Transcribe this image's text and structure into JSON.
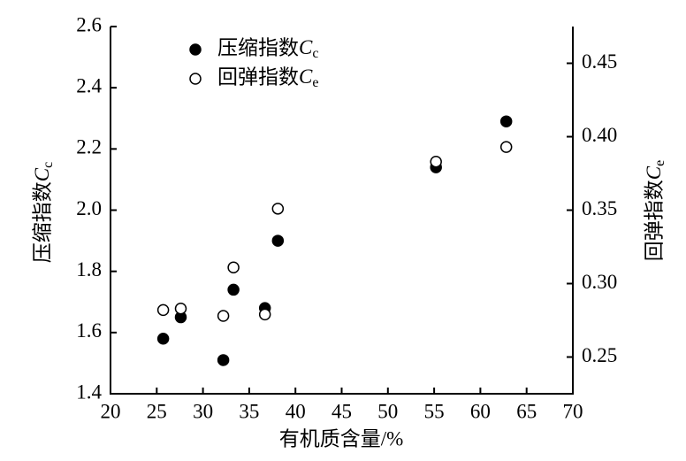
{
  "chart_data": {
    "type": "scatter",
    "xlabel": "有机质含量/%",
    "ylabel": "压缩指数Cc",
    "y2label": "回弹指数Ce",
    "xlim": [
      20,
      70
    ],
    "xticks": [
      20,
      25,
      30,
      35,
      40,
      45,
      50,
      55,
      60,
      65,
      70
    ],
    "ylim": [
      1.4,
      2.6
    ],
    "yticks": [
      1.4,
      1.6,
      1.8,
      {
        "value": 2,
        "label": "2.0"
      },
      2.2,
      2.4,
      2.6
    ],
    "y2lim": [
      0.225,
      0.475
    ],
    "y2ticks": [
      0.25,
      {
        "value": 0.3,
        "label": "0.30"
      },
      0.35,
      {
        "value": 0.4,
        "label": "0.40"
      },
      0.45
    ],
    "legend": "upper left",
    "series": [
      {
        "name": "压缩指数Cc",
        "color": "#000000",
        "marker": "filled",
        "x": [
          25.7,
          27.6,
          32.2,
          33.3,
          36.7,
          38.1,
          55.2,
          62.8
        ],
        "values": [
          1.58,
          1.65,
          1.51,
          1.74,
          1.68,
          1.9,
          2.14,
          2.29
        ]
      },
      {
        "name": "回弹指数Ce",
        "color": "#000000",
        "marker": "hollow",
        "axis": "y2",
        "x": [
          25.7,
          27.6,
          32.2,
          33.3,
          36.7,
          38.1,
          55.2,
          62.8
        ],
        "values": [
          0.282,
          0.283,
          0.278,
          0.311,
          0.279,
          0.351,
          0.383,
          0.393
        ]
      }
    ]
  }
}
